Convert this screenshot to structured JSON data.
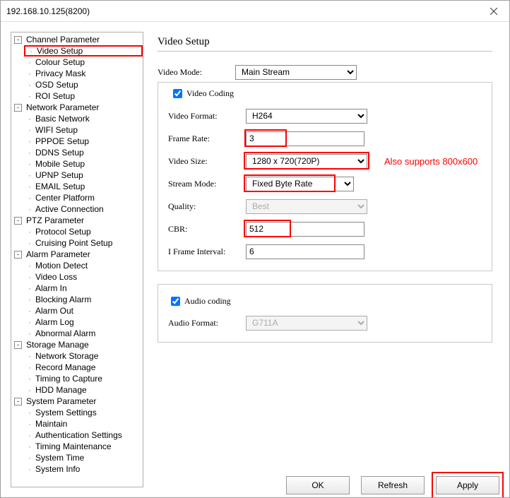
{
  "window": {
    "title": "192.168.10.125(8200)"
  },
  "tree": {
    "groups": [
      {
        "label": "Channel Parameter",
        "items": [
          {
            "label": "Video Setup",
            "highlighted": true
          },
          {
            "label": "Colour Setup"
          },
          {
            "label": "Privacy Mask"
          },
          {
            "label": "OSD Setup"
          },
          {
            "label": "ROI Setup"
          }
        ]
      },
      {
        "label": "Network Parameter",
        "items": [
          {
            "label": "Basic Network"
          },
          {
            "label": "WIFI Setup"
          },
          {
            "label": "PPPOE Setup"
          },
          {
            "label": "DDNS Setup"
          },
          {
            "label": "Mobile Setup"
          },
          {
            "label": "UPNP Setup"
          },
          {
            "label": "EMAIL Setup"
          },
          {
            "label": "Center Platform"
          },
          {
            "label": "Active Connection"
          }
        ]
      },
      {
        "label": "PTZ Parameter",
        "items": [
          {
            "label": "Protocol Setup"
          },
          {
            "label": "Cruising Point Setup"
          }
        ]
      },
      {
        "label": "Alarm Parameter",
        "items": [
          {
            "label": "Motion Detect"
          },
          {
            "label": "Video Loss"
          },
          {
            "label": "Alarm In"
          },
          {
            "label": "Blocking Alarm"
          },
          {
            "label": "Alarm Out"
          },
          {
            "label": "Alarm Log"
          },
          {
            "label": "Abnormal Alarm"
          }
        ]
      },
      {
        "label": "Storage Manage",
        "items": [
          {
            "label": "Network Storage"
          },
          {
            "label": "Record Manage"
          },
          {
            "label": "Timing to Capture"
          },
          {
            "label": "HDD Manage"
          }
        ]
      },
      {
        "label": "System Parameter",
        "items": [
          {
            "label": "System Settings"
          },
          {
            "label": "Maintain"
          },
          {
            "label": "Authentication Settings"
          },
          {
            "label": "Timing Maintenance"
          },
          {
            "label": "System Time"
          },
          {
            "label": "System Info"
          }
        ]
      }
    ]
  },
  "page": {
    "title": "Video Setup",
    "mode": {
      "label": "Video Mode:",
      "value": "Main Stream"
    },
    "video_coding_checkbox": "Video Coding",
    "video_coding_checked": true,
    "video_format": {
      "label": "Video Format:",
      "value": "H264"
    },
    "frame_rate": {
      "label": "Frame Rate:",
      "value": "3"
    },
    "video_size": {
      "label": "Video Size:",
      "value": "1280 x 720(720P)"
    },
    "stream_mode": {
      "label": "Stream Mode:",
      "value": "Fixed Byte Rate"
    },
    "quality": {
      "label": "Quality:",
      "value": "Best"
    },
    "cbr": {
      "label": "CBR:",
      "value": "512"
    },
    "iframe": {
      "label": "I Frame Interval:",
      "value": "6"
    },
    "audio_coding_checkbox": "Audio coding",
    "audio_coding_checked": true,
    "audio_format": {
      "label": "Audio Format:",
      "value": "G711A"
    }
  },
  "annotations": {
    "video_size_note": "Also supports 800x600"
  },
  "buttons": {
    "ok": "OK",
    "refresh": "Refresh",
    "apply": "Apply"
  },
  "colors": {
    "highlight": "#ff0000",
    "border": "#9f9f9f",
    "group_border": "#c8c8c8"
  }
}
